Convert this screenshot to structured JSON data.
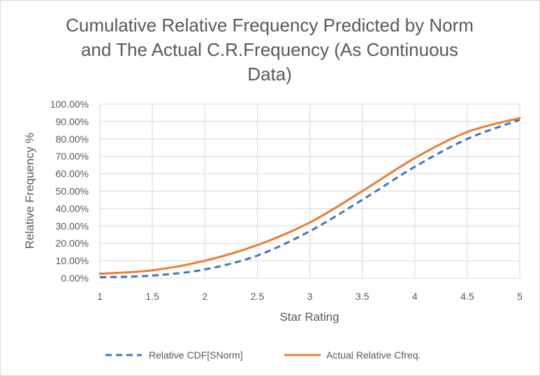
{
  "chart_data": {
    "type": "line",
    "title": "Cumulative Relative Frequency Predicted by Norm\nand The Actual C.R.Frequency  (As Continuous\nData)",
    "xlabel": "Star Rating",
    "ylabel": "Relative  Frequency %",
    "xlim": [
      1,
      5
    ],
    "ylim": [
      0,
      1
    ],
    "x_ticks": [
      "1",
      "1.5",
      "2",
      "2.5",
      "3",
      "3.5",
      "4",
      "4.5",
      "5"
    ],
    "y_ticks": [
      "0.00%",
      "10.00%",
      "20.00%",
      "30.00%",
      "40.00%",
      "50.00%",
      "60.00%",
      "70.00%",
      "80.00%",
      "90.00%",
      "100.00%"
    ],
    "grid": true,
    "legend_position": "bottom",
    "series": [
      {
        "name": "Relative CDF[SNorm]",
        "color": "#4472C4",
        "dash": "dashed",
        "x": [
          1,
          1.5,
          2,
          2.5,
          3,
          3.5,
          4,
          4.5,
          5
        ],
        "y": [
          0.005,
          0.015,
          0.05,
          0.13,
          0.27,
          0.45,
          0.64,
          0.8,
          0.91
        ]
      },
      {
        "name": "Actual Relative Cfreq.",
        "color": "#ED7D31",
        "dash": "solid",
        "x": [
          1,
          1.5,
          2,
          2.5,
          3,
          3.5,
          4,
          4.5,
          5
        ],
        "y": [
          0.025,
          0.045,
          0.1,
          0.19,
          0.32,
          0.5,
          0.69,
          0.84,
          0.92
        ]
      }
    ]
  }
}
